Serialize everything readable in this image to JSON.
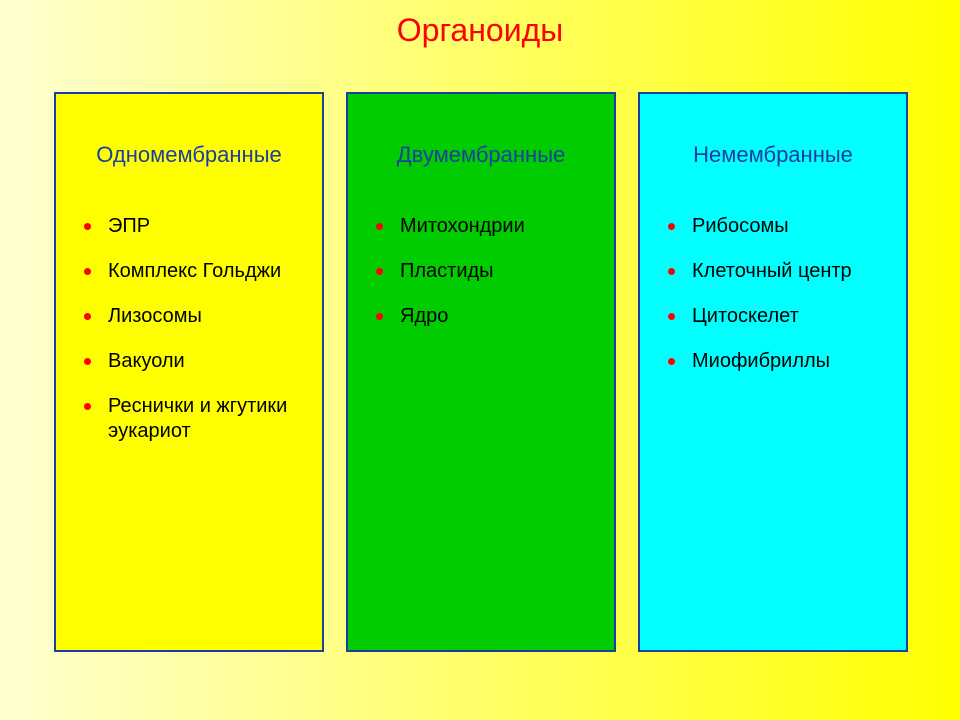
{
  "title": "Органоиды",
  "title_color": "#ff0000",
  "background_gradient": {
    "from": "#ffffd0",
    "to": "#ffff00"
  },
  "columns": [
    {
      "heading": "Одномембранные",
      "heading_color": "#1b3fa0",
      "bg_color": "#ffff00",
      "border_color": "#1b3fa0",
      "bullet_color": "#ff0000",
      "item_color": "#000000",
      "items": [
        "ЭПР",
        "Комплекс Гольджи",
        "Лизосомы",
        "Вакуоли",
        "Реснички и жгутики эукариот"
      ]
    },
    {
      "heading": "Двумембранные",
      "heading_color": "#1b3fa0",
      "bg_color": "#00cc00",
      "border_color": "#1b3fa0",
      "bullet_color": "#ff0000",
      "item_color": "#000000",
      "items": [
        "Митохондрии",
        "Пластиды",
        "Ядро"
      ]
    },
    {
      "heading": "Немембранные",
      "heading_color": "#1b3fa0",
      "bg_color": "#00ffff",
      "border_color": "#1b3fa0",
      "bullet_color": "#ff0000",
      "item_color": "#000000",
      "items": [
        "Рибосомы",
        "Клеточный центр",
        "Цитоскелет",
        "Миофибриллы"
      ]
    }
  ]
}
